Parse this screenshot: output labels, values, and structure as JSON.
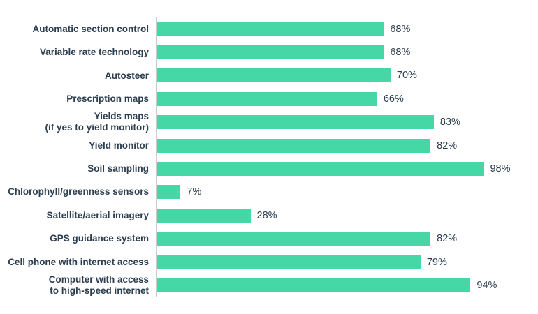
{
  "chart_data": {
    "type": "bar",
    "orientation": "horizontal",
    "title": "",
    "xlabel": "",
    "ylabel": "",
    "xlim": [
      0,
      100
    ],
    "grid": false,
    "legend": false,
    "value_suffix": "%",
    "bar_color": "#46D7A6",
    "text_color": "#2C3E50",
    "axis_line_color": "#C9CDD1",
    "categories": [
      "Automatic section control",
      "Variable rate technology",
      "Autosteer",
      "Prescription maps",
      "Yields maps\n(if yes to yield monitor)",
      "Yield monitor",
      "Soil sampling",
      "Chlorophyll/greenness sensors",
      "Satellite/aerial imagery",
      "GPS guidance system",
      "Cell phone with internet access",
      "Computer with access\nto high-speed internet"
    ],
    "values": [
      68,
      68,
      70,
      66,
      83,
      82,
      98,
      7,
      28,
      82,
      79,
      94
    ],
    "value_labels": [
      "68%",
      "68%",
      "70%",
      "66%",
      "83%",
      "82%",
      "98%",
      "7%",
      "28%",
      "82%",
      "79%",
      "94%"
    ]
  }
}
